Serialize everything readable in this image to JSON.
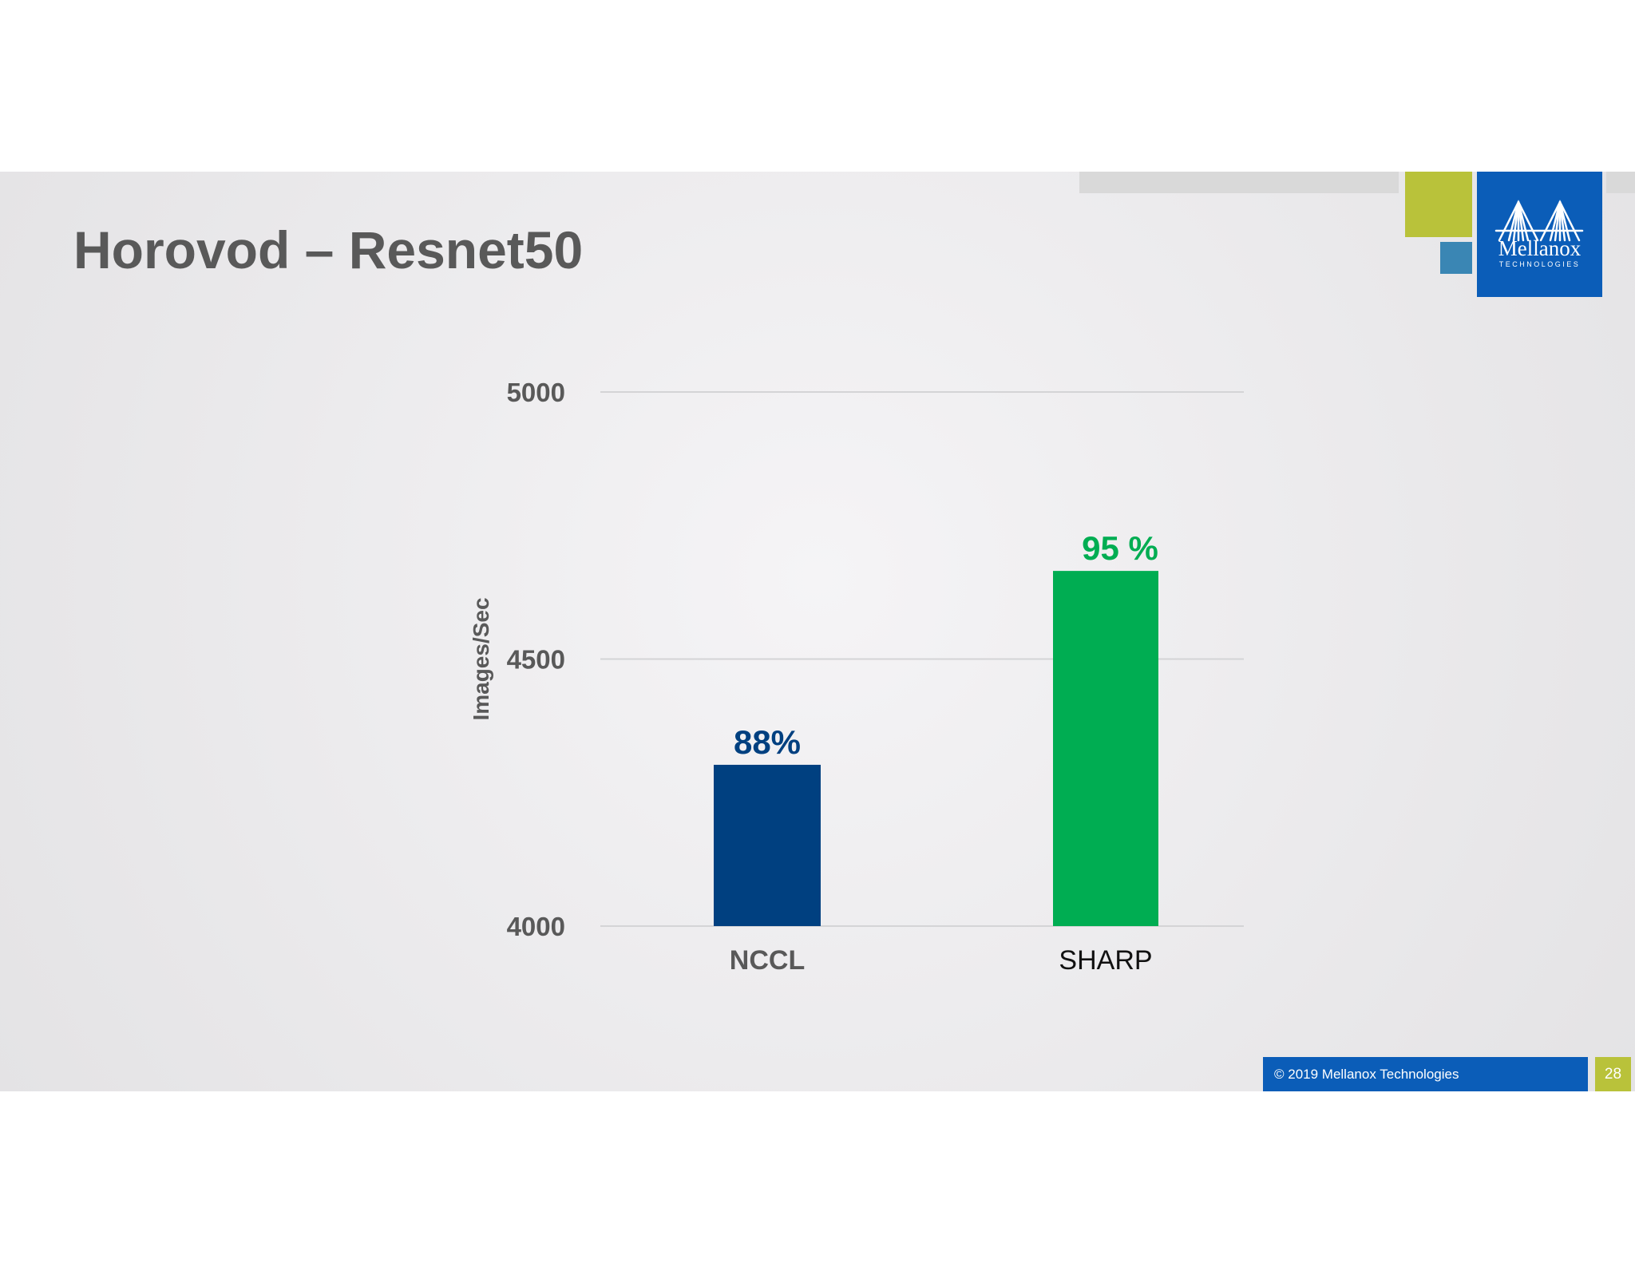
{
  "slide": {
    "title": "Horovod – Resnet50",
    "footer": "© 2019 Mellanox Technologies",
    "page_number": "28"
  },
  "logo": {
    "brand": "Mellanox",
    "sub": "TECHNOLOGIES",
    "icon": "bridge-icon"
  },
  "colors": {
    "nccl": "#004080",
    "sharp": "#00ad52",
    "brand_blue": "#0b5db8",
    "brand_green": "#b9c23a",
    "brand_teal": "#3a86b4"
  },
  "chart_data": {
    "type": "bar",
    "categories": [
      "NCCL",
      "SHARP"
    ],
    "values": [
      4302,
      4665
    ],
    "data_labels": [
      "88%",
      "95 %"
    ],
    "bar_colors": [
      "#004080",
      "#00ad52"
    ],
    "label_colors": [
      "#004080",
      "#00ad52"
    ],
    "ylabel": "Images/Sec",
    "xlabel": "",
    "ylim": [
      4000,
      5000
    ],
    "yticks": [
      4000,
      4500,
      5000
    ],
    "grid": true,
    "legend": "none"
  }
}
